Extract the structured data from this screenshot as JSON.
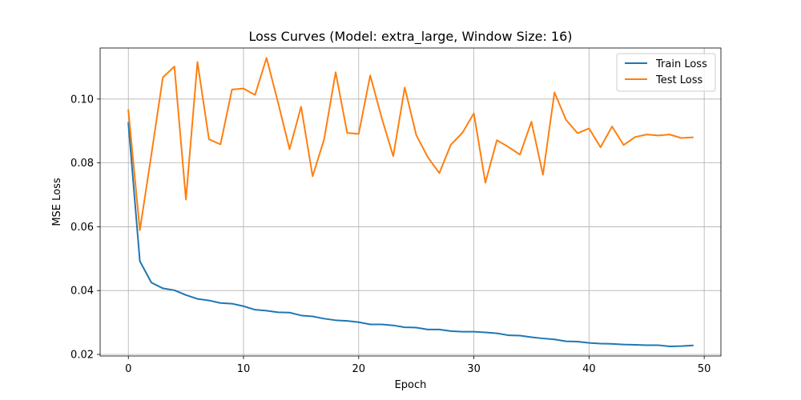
{
  "chart_data": {
    "type": "line",
    "title": "Loss Curves (Model: extra_large, Window Size: 16)",
    "xlabel": "Epoch",
    "ylabel": "MSE Loss",
    "xlim": [
      -2.45,
      51.45
    ],
    "ylim": [
      0.0195,
      0.116
    ],
    "xticks": [
      0,
      10,
      20,
      30,
      40,
      50
    ],
    "yticks": [
      0.02,
      0.04,
      0.06,
      0.08,
      0.1
    ],
    "xtick_labels": [
      "0",
      "10",
      "20",
      "30",
      "40",
      "50"
    ],
    "ytick_labels": [
      "0.02",
      "0.04",
      "0.06",
      "0.08",
      "0.10"
    ],
    "grid": true,
    "legend_position": "top-right",
    "x": [
      0,
      1,
      2,
      3,
      4,
      5,
      6,
      7,
      8,
      9,
      10,
      11,
      12,
      13,
      14,
      15,
      16,
      17,
      18,
      19,
      20,
      21,
      22,
      23,
      24,
      25,
      26,
      27,
      28,
      29,
      30,
      31,
      32,
      33,
      34,
      35,
      36,
      37,
      38,
      39,
      40,
      41,
      42,
      43,
      44,
      45,
      46,
      47,
      48,
      49
    ],
    "series": [
      {
        "name": "Train Loss",
        "color": "#1f77b4",
        "values": [
          0.0925,
          0.0492,
          0.0425,
          0.0407,
          0.0401,
          0.0386,
          0.0374,
          0.0369,
          0.0361,
          0.0359,
          0.0351,
          0.034,
          0.0337,
          0.0332,
          0.0331,
          0.0322,
          0.0319,
          0.0312,
          0.0307,
          0.0305,
          0.0301,
          0.0294,
          0.0294,
          0.0291,
          0.0285,
          0.0284,
          0.0278,
          0.0278,
          0.0273,
          0.0271,
          0.0271,
          0.0269,
          0.0266,
          0.026,
          0.0259,
          0.0254,
          0.025,
          0.0247,
          0.0241,
          0.024,
          0.0236,
          0.0234,
          0.0233,
          0.0231,
          0.023,
          0.0229,
          0.0229,
          0.0225,
          0.0226,
          0.0228
        ]
      },
      {
        "name": "Test Loss",
        "color": "#ff7f0e",
        "values": [
          0.0965,
          0.0589,
          0.0826,
          0.1068,
          0.1102,
          0.0685,
          0.1116,
          0.0874,
          0.0858,
          0.103,
          0.1033,
          0.1013,
          0.1129,
          0.0989,
          0.0843,
          0.0976,
          0.0758,
          0.0874,
          0.1084,
          0.0894,
          0.0891,
          0.1074,
          0.0941,
          0.0821,
          0.1036,
          0.0887,
          0.0818,
          0.0768,
          0.0857,
          0.0894,
          0.0955,
          0.0738,
          0.0871,
          0.085,
          0.0826,
          0.0929,
          0.0763,
          0.1021,
          0.0935,
          0.0893,
          0.0908,
          0.0849,
          0.0914,
          0.0856,
          0.0881,
          0.0889,
          0.0886,
          0.0889,
          0.0878,
          0.088
        ]
      }
    ]
  }
}
